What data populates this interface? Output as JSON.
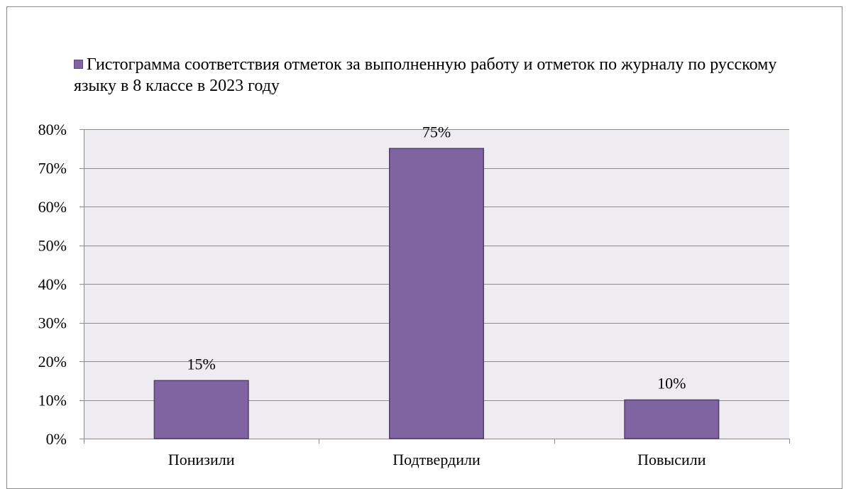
{
  "chart_data": {
    "type": "bar",
    "title": "",
    "xlabel": "",
    "ylabel": "",
    "categories": [
      "Понизили",
      "Подтвердили",
      "Повысили"
    ],
    "series": [
      {
        "name": "Гистограмма соответствия отметок за выполненную работу и отметок по журналу по русскому языку в 8 классе в 2023 году",
        "values": [
          15,
          75,
          10
        ],
        "labels": [
          "15%",
          "75%",
          "10%"
        ]
      }
    ],
    "ylim": [
      0,
      80
    ],
    "yticks": [
      0,
      10,
      20,
      30,
      40,
      50,
      60,
      70,
      80
    ],
    "ytick_labels": [
      "0%",
      "10%",
      "20%",
      "30%",
      "40%",
      "50%",
      "60%",
      "70%",
      "80%"
    ],
    "grid": true,
    "legend_position": "top-left",
    "colors": {
      "bar_fill": "#8064a2",
      "bar_stroke": "#4f3d6b",
      "plot_background": "#eeecf1",
      "gridline": "#8c8c8c"
    }
  }
}
